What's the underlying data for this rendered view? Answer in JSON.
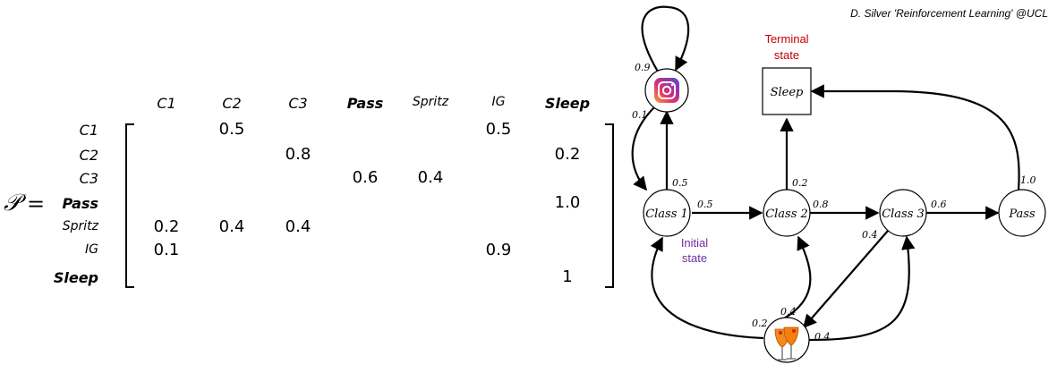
{
  "credit": "D. Silver 'Reinforcement Learning' @UCL",
  "matrix": {
    "symbol": "𝒫",
    "equals": "=",
    "columns": [
      "C1",
      "C2",
      "C3",
      "Pass",
      "Spritz",
      "IG",
      "Sleep"
    ],
    "rows": [
      {
        "label": "C1",
        "cells": [
          "",
          "0.5",
          "",
          "",
          "",
          "0.5",
          ""
        ]
      },
      {
        "label": "C2",
        "cells": [
          "",
          "",
          "0.8",
          "",
          "",
          "",
          "0.2"
        ]
      },
      {
        "label": "C3",
        "cells": [
          "",
          "",
          "",
          "0.6",
          "0.4",
          "",
          ""
        ]
      },
      {
        "label": "Pass",
        "cells": [
          "",
          "",
          "",
          "",
          "",
          "",
          "1.0"
        ]
      },
      {
        "label": "Spritz",
        "cells": [
          "0.2",
          "0.4",
          "0.4",
          "",
          "",
          "",
          ""
        ]
      },
      {
        "label": "IG",
        "cells": [
          "0.1",
          "",
          "",
          "",
          "",
          "0.9",
          ""
        ]
      },
      {
        "label": "Sleep",
        "cells": [
          "",
          "",
          "",
          "",
          "",
          "",
          "1"
        ]
      }
    ]
  },
  "graph": {
    "nodes": {
      "class1": "Class 1",
      "class2": "Class 2",
      "class3": "Class 3",
      "pass": "Pass",
      "sleep": "Sleep",
      "ig_icon": "instagram-icon",
      "spritz_icon": "spritz-glasses-icon"
    },
    "annotations": {
      "terminal_line1": "Terminal",
      "terminal_line2": "state",
      "initial_line1": "Initial",
      "initial_line2": "state"
    },
    "edges": {
      "ig_self": "0.9",
      "ig_to_c1": "0.1",
      "c1_to_ig": "0.5",
      "c1_to_c2": "0.5",
      "c2_to_sleep": "0.2",
      "c2_to_c3": "0.8",
      "c3_to_pass": "0.6",
      "c3_to_spritz": "0.4",
      "pass_to_sleep": "1.0",
      "spritz_to_c1": "0.2",
      "spritz_to_c2": "0.4",
      "spritz_to_c3": "0.4"
    },
    "colors": {
      "terminal": "#c00000",
      "initial": "#7030a0"
    }
  }
}
